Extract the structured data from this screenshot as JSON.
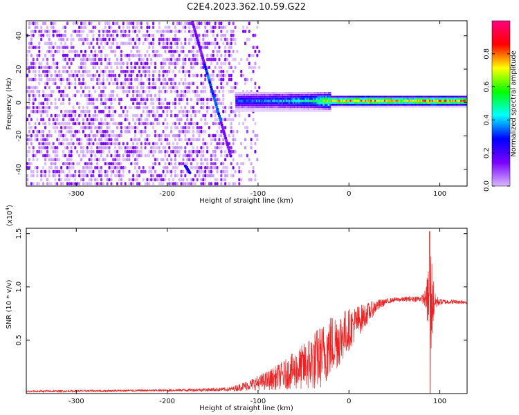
{
  "chart_data": [
    {
      "type": "heatmap",
      "title": "C2E4.2023.362.10.59.G22",
      "xlabel": "Height of straight line (km)",
      "ylabel": "Frequency (Hz)",
      "xlim": [
        -355,
        130
      ],
      "ylim": [
        -50,
        49
      ],
      "xticks": [
        -300,
        -200,
        -100,
        0,
        100
      ],
      "xtick_labels": [
        "-300",
        "-200",
        "-100",
        "0",
        "100"
      ],
      "yticks": [
        -40,
        -20,
        0,
        20,
        40
      ],
      "ytick_labels": [
        "-40",
        "-20",
        "0",
        "20",
        "40"
      ],
      "colorbar": {
        "label": "Normalized spectral amplitude",
        "ticks": [
          0.0,
          0.2,
          0.4,
          0.6,
          0.8
        ],
        "tick_labels": [
          "0.0",
          "0.2",
          "0.4",
          "0.6",
          "0.8"
        ],
        "range": [
          0,
          1
        ],
        "colors": [
          "#ffffff",
          "#d8b8ff",
          "#7a00ff",
          "#0000ff",
          "#00ffff",
          "#00ff00",
          "#ffff00",
          "#ff0000",
          "#ff0080"
        ]
      },
      "features": {
        "noise_region_x": [
          -355,
          -105
        ],
        "streak": {
          "x": [
            -172,
            -130
          ],
          "y": [
            48,
            -32
          ]
        },
        "minor_streak": {
          "x": [
            -180,
            -175
          ],
          "y": [
            -38,
            -42
          ]
        },
        "carrier": {
          "y": 1,
          "x": [
            -125,
            130
          ],
          "points": [
            {
              "x": -120,
              "amp": 0.4
            },
            {
              "x": -80,
              "amp": 0.45
            },
            {
              "x": -40,
              "amp": 0.55
            },
            {
              "x": -20,
              "amp": 0.75
            },
            {
              "x": 0,
              "amp": 0.8
            },
            {
              "x": 20,
              "amp": 0.85
            },
            {
              "x": 60,
              "amp": 0.75
            },
            {
              "x": 90,
              "amp": 0.85
            },
            {
              "x": 130,
              "amp": 0.8
            }
          ]
        }
      }
    },
    {
      "type": "line",
      "xlabel": "Height of straight line (km)",
      "ylabel": "SNR (10 * v/v)",
      "yscale_label": "(x10",
      "yscale_exponent": "4",
      "yscale_suffix": ")",
      "xlim": [
        -355,
        130
      ],
      "ylim": [
        0,
        1.55
      ],
      "xticks": [
        -300,
        -200,
        -100,
        0,
        100
      ],
      "xtick_labels": [
        "-300",
        "-200",
        "-100",
        "0",
        "100"
      ],
      "yticks": [
        0.5,
        1.0,
        1.5
      ],
      "ytick_labels": [
        "0.5",
        "1.0",
        "1.5"
      ],
      "color": "#ee2222",
      "envelope": {
        "x": [
          -355,
          -200,
          -130,
          -110,
          -90,
          -70,
          -50,
          -40,
          -30,
          -20,
          -10,
          0,
          10,
          20,
          30,
          40,
          50,
          80,
          85,
          88,
          90,
          92,
          95,
          100,
          110,
          130
        ],
        "base": [
          0.02,
          0.03,
          0.04,
          0.08,
          0.12,
          0.18,
          0.25,
          0.3,
          0.35,
          0.45,
          0.52,
          0.6,
          0.68,
          0.75,
          0.82,
          0.86,
          0.88,
          0.89,
          0.89,
          0.89,
          0.88,
          0.87,
          0.86,
          0.86,
          0.86,
          0.86
        ],
        "noise": [
          0.01,
          0.01,
          0.02,
          0.05,
          0.09,
          0.14,
          0.22,
          0.28,
          0.3,
          0.3,
          0.26,
          0.2,
          0.15,
          0.1,
          0.06,
          0.03,
          0.02,
          0.03,
          0.1,
          0.45,
          0.6,
          0.3,
          0.08,
          0.03,
          0.02,
          0.02
        ]
      }
    }
  ]
}
